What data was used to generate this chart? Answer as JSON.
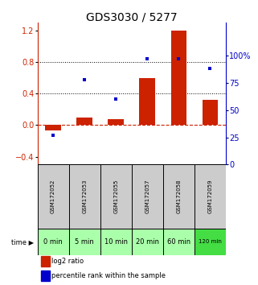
{
  "title": "GDS3030 / 5277",
  "samples": [
    "GSM172052",
    "GSM172053",
    "GSM172055",
    "GSM172057",
    "GSM172058",
    "GSM172059"
  ],
  "time_labels": [
    "0 min",
    "5 min",
    "10 min",
    "20 min",
    "60 min",
    "120 min"
  ],
  "log2_ratio": [
    -0.07,
    0.1,
    0.08,
    0.6,
    1.2,
    0.32
  ],
  "percentile_rank": [
    27,
    78,
    60,
    97,
    97,
    88
  ],
  "bar_color": "#cc2200",
  "dot_color": "#0000cc",
  "ylim_left": [
    -0.5,
    1.3
  ],
  "ylim_right": [
    0,
    130
  ],
  "yticks_left": [
    -0.4,
    0.0,
    0.4,
    0.8,
    1.2
  ],
  "yticks_right": [
    0,
    25,
    50,
    75,
    100
  ],
  "hline_color": "#cc2200",
  "dotted_lines": [
    0.4,
    0.8
  ],
  "sample_bg": "#cccccc",
  "time_bg_colors": [
    "#aaffaa",
    "#aaffaa",
    "#aaffaa",
    "#aaffaa",
    "#aaffaa",
    "#44dd44"
  ],
  "bg_color": "white",
  "title_fontsize": 10,
  "tick_fontsize": 7,
  "axis_left_color": "#cc2200",
  "axis_right_color": "#0000cc"
}
